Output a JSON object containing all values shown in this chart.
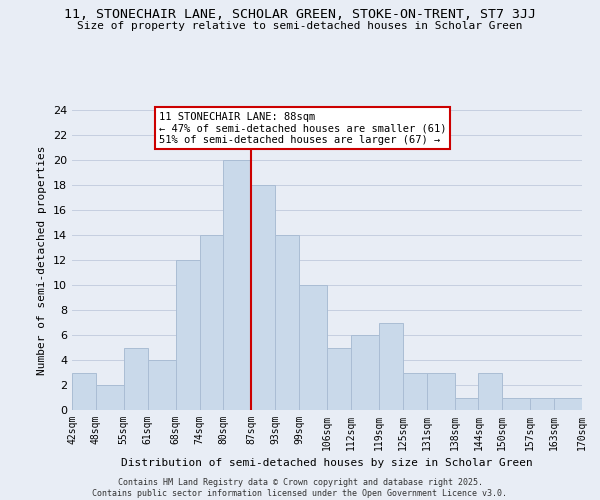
{
  "title1": "11, STONECHAIR LANE, SCHOLAR GREEN, STOKE-ON-TRENT, ST7 3JJ",
  "title2": "Size of property relative to semi-detached houses in Scholar Green",
  "xlabel": "Distribution of semi-detached houses by size in Scholar Green",
  "ylabel": "Number of semi-detached properties",
  "bins": [
    42,
    48,
    55,
    61,
    68,
    74,
    80,
    87,
    93,
    99,
    106,
    112,
    119,
    125,
    131,
    138,
    144,
    150,
    157,
    163,
    170
  ],
  "bin_labels": [
    "42sqm",
    "48sqm",
    "55sqm",
    "61sqm",
    "68sqm",
    "74sqm",
    "80sqm",
    "87sqm",
    "93sqm",
    "99sqm",
    "106sqm",
    "112sqm",
    "119sqm",
    "125sqm",
    "131sqm",
    "138sqm",
    "144sqm",
    "150sqm",
    "157sqm",
    "163sqm",
    "170sqm"
  ],
  "counts": [
    3,
    2,
    5,
    4,
    12,
    14,
    20,
    18,
    14,
    10,
    5,
    6,
    7,
    3,
    3,
    1,
    3,
    1,
    1,
    1
  ],
  "bar_color": "#c9d9ea",
  "bar_edge_color": "#aabdd4",
  "grid_color": "#c5cfe0",
  "background_color": "#e8edf5",
  "vline_x": 87,
  "vline_color": "#cc0000",
  "annotation_title": "11 STONECHAIR LANE: 88sqm",
  "annotation_line1": "← 47% of semi-detached houses are smaller (61)",
  "annotation_line2": "51% of semi-detached houses are larger (67) →",
  "annotation_box_color": "#ffffff",
  "annotation_box_edge": "#cc0000",
  "ylim": [
    0,
    24
  ],
  "yticks": [
    0,
    2,
    4,
    6,
    8,
    10,
    12,
    14,
    16,
    18,
    20,
    22,
    24
  ],
  "footer1": "Contains HM Land Registry data © Crown copyright and database right 2025.",
  "footer2": "Contains public sector information licensed under the Open Government Licence v3.0."
}
